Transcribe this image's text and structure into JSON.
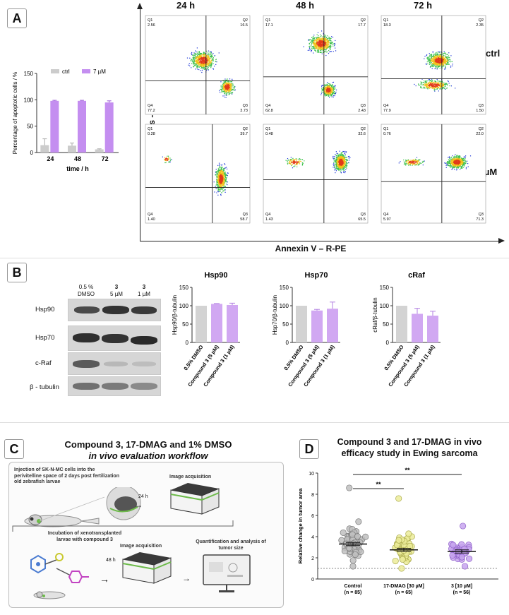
{
  "panel_labels": {
    "a": "A",
    "b": "B",
    "c": "C",
    "d": "D"
  },
  "panelA": {
    "chart_data": {
      "type": "bar",
      "categories": [
        "24",
        "48",
        "72"
      ],
      "series": [
        {
          "name": "ctrl",
          "values": [
            14,
            13,
            6
          ],
          "errors": [
            12,
            5,
            1
          ],
          "color": "#cccccc"
        },
        {
          "name": "7 µM",
          "values": [
            98,
            98,
            95
          ],
          "errors": [
            1,
            1,
            3
          ],
          "color": "#c48ef0"
        }
      ],
      "ylabel": "Percentage of apoptotic cells / %",
      "xlabel": "time / h",
      "ylim": [
        0,
        150
      ],
      "yticks": [
        "0",
        "50",
        "100",
        "150"
      ],
      "legend": "top"
    },
    "col_titles": [
      "24 h",
      "48 h",
      "72 h"
    ],
    "row_labels": [
      "ctrl",
      "7 µM"
    ],
    "y_axis_label": "Dead cells - SytoxBlue",
    "x_axis_label": "Annexin V – R-PE",
    "quadrant_names": [
      "Q1",
      "Q2",
      "Q3",
      "Q4"
    ],
    "flow_plots": [
      {
        "q1": "2.56",
        "q2": "16.5",
        "q3": "3.73",
        "q4": "77.2"
      },
      {
        "q1": "17.1",
        "q2": "17.7",
        "q3": "2.43",
        "q4": "62.8"
      },
      {
        "q1": "18.3",
        "q2": "2.35",
        "q3": "1.50",
        "q4": "77.9"
      },
      {
        "q1": "0.28",
        "q2": "39.7",
        "q3": "58.7",
        "q4": "1.40"
      },
      {
        "q1": "0.48",
        "q2": "32.6",
        "q3": "65.5",
        "q4": "1.43"
      },
      {
        "q1": "0.76",
        "q2": "22.0",
        "q3": "71.3",
        "q4": "5.97"
      }
    ]
  },
  "panelB": {
    "blot_headers": [
      {
        "l1": "0.5 %",
        "l2": "DMSO"
      },
      {
        "l1": "3",
        "l2": "5 µM"
      },
      {
        "l1": "3",
        "l2": "1 µM"
      }
    ],
    "blot_rows": [
      "Hsp90",
      "Hsp70",
      "c-Raf",
      "β - tubulin"
    ],
    "chart_data": [
      {
        "type": "bar",
        "title": "Hsp90",
        "ylabel": "Hsp90/β-tubulin",
        "categories": [
          "0.5% DMSO",
          "Compound 3 (5 µM)",
          "Compound 3 (1 µM)"
        ],
        "values": [
          100,
          105,
          102
        ],
        "errors": [
          0,
          1,
          5
        ],
        "ylim": [
          0,
          150
        ],
        "yticks": [
          "0",
          "50",
          "100",
          "150"
        ]
      },
      {
        "type": "bar",
        "title": "Hsp70",
        "ylabel": "Hsp70/β-tubulin",
        "categories": [
          "0.5% DMSO",
          "Compound 3 (5 µM)",
          "Compound 3 (1 µM)"
        ],
        "values": [
          100,
          87,
          92
        ],
        "errors": [
          0,
          3,
          18
        ],
        "ylim": [
          0,
          150
        ],
        "yticks": [
          "0",
          "50",
          "100",
          "150"
        ]
      },
      {
        "type": "bar",
        "title": "cRaf",
        "ylabel": "cRaf/β-tubulin",
        "categories": [
          "0.5% DMSO",
          "Compound 3 (5 µM)",
          "Compound 3 (1 µM)"
        ],
        "values": [
          100,
          78,
          73
        ],
        "errors": [
          0,
          15,
          12
        ],
        "ylim": [
          0,
          150
        ],
        "yticks": [
          "0",
          "50",
          "100",
          "150"
        ]
      }
    ]
  },
  "panelC": {
    "title_l1": "Compound 3, 17-DMAG and 1% DMSO",
    "title_l2": "in vivo evaluation workflow",
    "injection_text": "Injection of SK-N-MC cells into the perivitelline space of 2 days post fertilization old zebrafish larvae",
    "step1_time": "24 h",
    "image_acq_1": "Image acquisition",
    "incubation_text": "Incubation of xenotransplanted larvae with compound 3",
    "step2_time": "48 h",
    "image_acq_2": "Image acquisition",
    "quant_text": "Quantification and analysis of tumor size"
  },
  "panelD": {
    "chart_data": {
      "type": "scatter",
      "title_l1": "Compound 3 and 17-DMAG in vivo",
      "title_l2": "efficacy study in Ewing sarcoma",
      "ylabel": "Relative change in tumor area",
      "ylim": [
        0,
        10
      ],
      "yticks": [
        "0",
        "2",
        "4",
        "6",
        "8",
        "10"
      ],
      "groups": [
        {
          "name": "Control",
          "n": "(n = 85)",
          "mean": 3.3,
          "sem": 0.15,
          "color": "#bfbfbf",
          "edge": "#7a7a7a",
          "min": 1.2,
          "max": 8.6
        },
        {
          "name": "17-DMAG [30 µM]",
          "n": "(n = 65)",
          "mean": 2.75,
          "sem": 0.15,
          "color": "#ecec9a",
          "edge": "#a9a94a",
          "min": 1.0,
          "max": 7.6
        },
        {
          "name": "3 [10 µM]",
          "n": "(n = 56)",
          "mean": 2.6,
          "sem": 0.15,
          "color": "#c7a4ee",
          "edge": "#8e5fc8",
          "min": 1.2,
          "max": 5.0
        }
      ],
      "significance": [
        "**",
        "**"
      ],
      "reference_line": 1
    }
  }
}
